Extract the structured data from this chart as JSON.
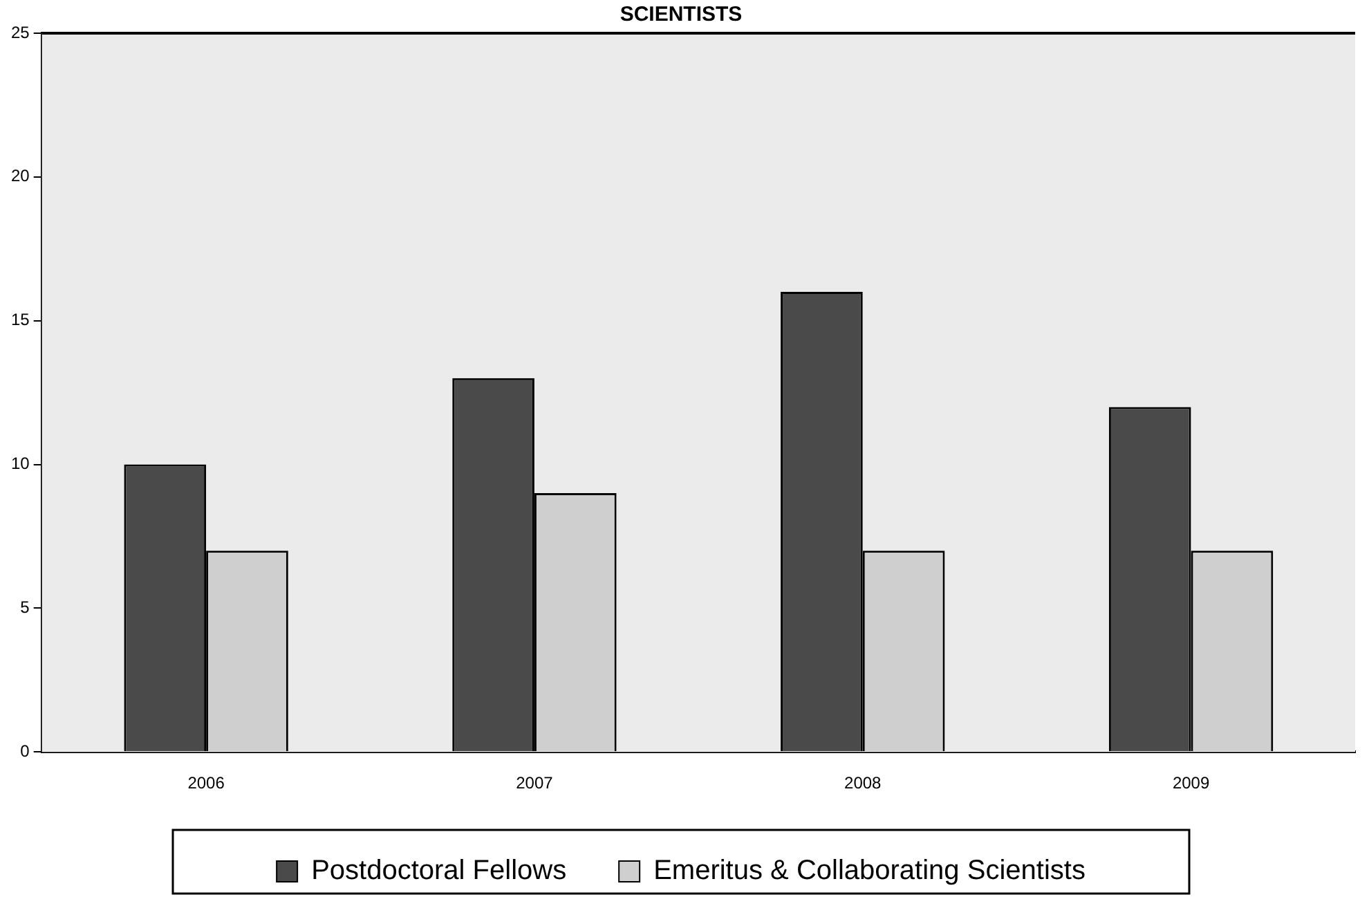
{
  "chart_data": {
    "type": "bar",
    "title": "SCIENTISTS",
    "categories": [
      "2006",
      "2007",
      "2008",
      "2009"
    ],
    "series": [
      {
        "name": "Postdoctoral Fellows",
        "color": "#4a4a4a",
        "values": [
          10,
          13,
          16,
          12
        ]
      },
      {
        "name": "Emeritus & Collaborating Scientists",
        "color": "#cfcfcf",
        "values": [
          7,
          9,
          7,
          7
        ]
      }
    ],
    "ylim": [
      0,
      25
    ],
    "yticks": [
      0,
      5,
      10,
      15,
      20,
      25
    ],
    "grid": false,
    "legend": "bottom"
  }
}
